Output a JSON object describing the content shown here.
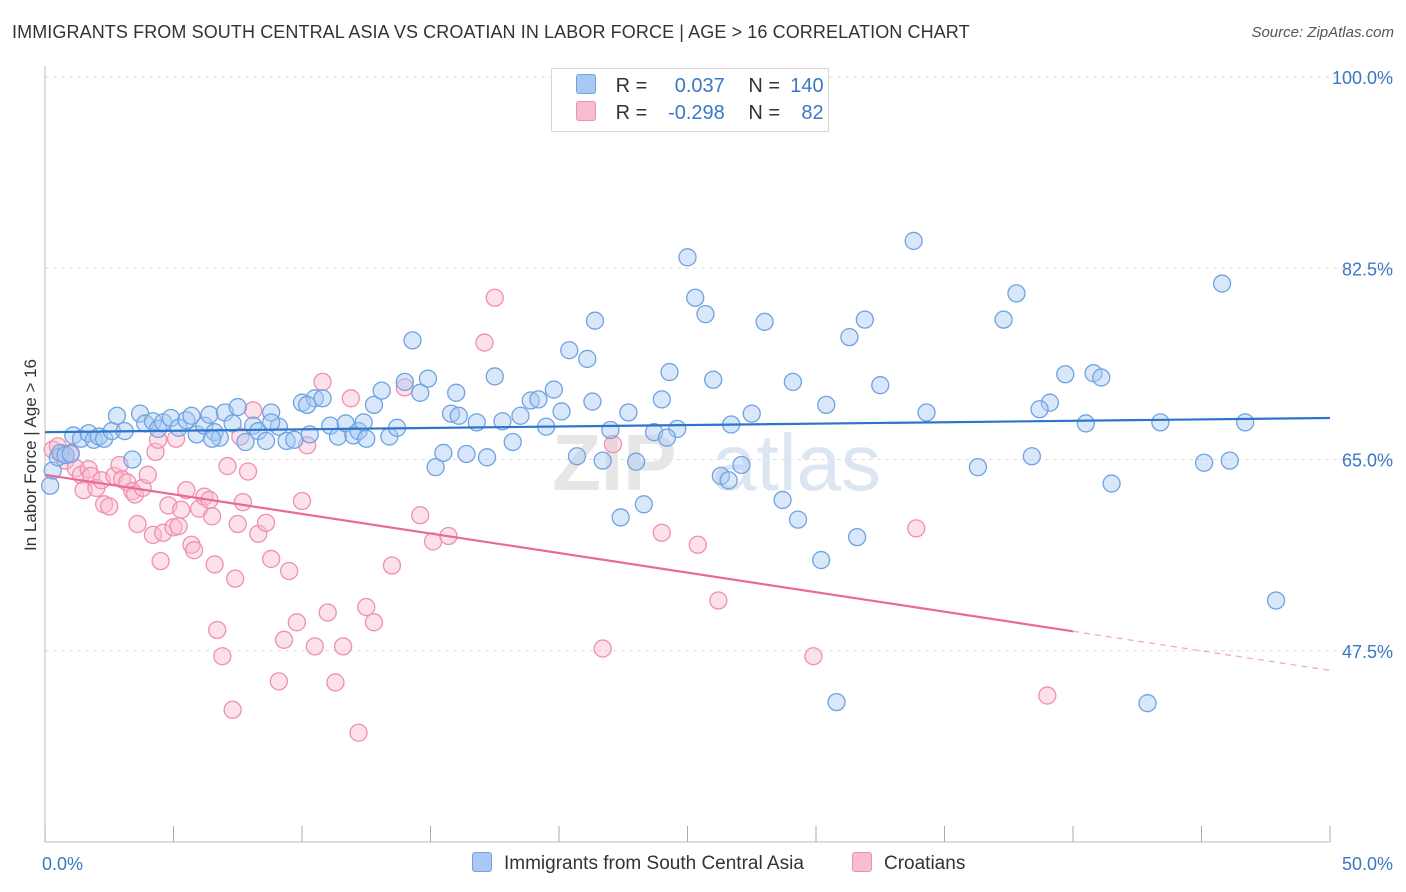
{
  "header": {
    "title": "IMMIGRANTS FROM SOUTH CENTRAL ASIA VS CROATIAN IN LABOR FORCE | AGE > 16 CORRELATION CHART",
    "source": "Source: ZipAtlas.com"
  },
  "legend": {
    "rows": [
      {
        "r_label": "R =",
        "r_value": "0.037",
        "n_label": "N =",
        "n_value": "140"
      },
      {
        "r_label": "R =",
        "r_value": "-0.298",
        "n_label": "N =",
        "n_value": "82"
      }
    ],
    "bottom": [
      "Immigrants from South Central Asia",
      "Croatians"
    ]
  },
  "watermark": {
    "zip": "ZIP",
    "atlas": "atlas"
  },
  "colors": {
    "blue_fill": "#a9c9f3",
    "blue_stroke": "#6fa3e0",
    "blue_line": "#2d74cc",
    "pink_fill": "#f8bdd0",
    "pink_stroke": "#f08fae",
    "pink_line": "#e8699a",
    "tick_text": "#3b78c4",
    "grid": "#dddddd"
  },
  "chart_data": {
    "type": "scatter",
    "title": "IMMIGRANTS FROM SOUTH CENTRAL ASIA VS CROATIAN IN LABOR FORCE | AGE > 16 CORRELATION CHART",
    "xlabel": "",
    "ylabel": "In Labor Force | Age > 16",
    "xlim": [
      0,
      50
    ],
    "ylim": [
      30,
      100
    ],
    "x_tick_labels": [
      {
        "value": 0,
        "label": "0.0%"
      },
      {
        "value": 50,
        "label": "50.0%"
      }
    ],
    "y_tick_labels": [
      {
        "value": 100,
        "label": "100.0%"
      },
      {
        "value": 82.5,
        "label": "82.5%"
      },
      {
        "value": 65,
        "label": "65.0%"
      },
      {
        "value": 47.5,
        "label": "47.5%"
      }
    ],
    "grid": "horizontal dashed",
    "series": [
      {
        "name": "Immigrants from South Central Asia",
        "color": "#6fa3e0",
        "stats": {
          "R": 0.037,
          "N": 140
        },
        "trend": {
          "x": [
            0,
            50
          ],
          "y": [
            67.5,
            68.8
          ],
          "dashed_from": null
        },
        "points": [
          [
            0.2,
            62.6
          ],
          [
            0.3,
            64.0
          ],
          [
            0.5,
            65.2
          ],
          [
            0.6,
            65.6
          ],
          [
            0.8,
            65.4
          ],
          [
            1.0,
            65.5
          ],
          [
            1.1,
            67.2
          ],
          [
            1.4,
            66.9
          ],
          [
            1.7,
            67.4
          ],
          [
            1.9,
            66.8
          ],
          [
            2.1,
            67.1
          ],
          [
            2.3,
            66.9
          ],
          [
            2.6,
            67.6
          ],
          [
            2.8,
            69.0
          ],
          [
            3.1,
            67.6
          ],
          [
            3.4,
            65.0
          ],
          [
            3.7,
            69.2
          ],
          [
            3.9,
            68.3
          ],
          [
            4.2,
            68.5
          ],
          [
            4.4,
            67.8
          ],
          [
            4.6,
            68.4
          ],
          [
            4.9,
            68.8
          ],
          [
            5.2,
            67.9
          ],
          [
            5.5,
            68.6
          ],
          [
            5.7,
            69.0
          ],
          [
            5.9,
            67.3
          ],
          [
            6.2,
            68.1
          ],
          [
            6.4,
            69.1
          ],
          [
            6.6,
            67.5
          ],
          [
            6.8,
            67.0
          ],
          [
            7.0,
            69.3
          ],
          [
            7.3,
            68.3
          ],
          [
            7.5,
            69.8
          ],
          [
            7.8,
            66.6
          ],
          [
            8.1,
            68.1
          ],
          [
            8.3,
            67.6
          ],
          [
            8.6,
            66.7
          ],
          [
            8.8,
            69.3
          ],
          [
            9.1,
            68.0
          ],
          [
            9.4,
            66.7
          ],
          [
            9.7,
            66.8
          ],
          [
            10.0,
            70.2
          ],
          [
            10.3,
            67.3
          ],
          [
            10.5,
            70.6
          ],
          [
            10.8,
            70.6
          ],
          [
            11.1,
            68.1
          ],
          [
            11.4,
            67.1
          ],
          [
            11.7,
            68.3
          ],
          [
            12.0,
            67.2
          ],
          [
            12.2,
            67.6
          ],
          [
            12.5,
            66.9
          ],
          [
            12.8,
            70.0
          ],
          [
            13.1,
            71.3
          ],
          [
            13.4,
            67.1
          ],
          [
            13.7,
            67.9
          ],
          [
            14.0,
            72.1
          ],
          [
            14.3,
            75.9
          ],
          [
            14.6,
            71.1
          ],
          [
            14.9,
            72.4
          ],
          [
            15.2,
            64.3
          ],
          [
            15.5,
            65.6
          ],
          [
            15.8,
            69.2
          ],
          [
            16.1,
            69.0
          ],
          [
            16.4,
            65.5
          ],
          [
            16.8,
            68.4
          ],
          [
            17.2,
            65.2
          ],
          [
            17.5,
            72.6
          ],
          [
            17.8,
            68.5
          ],
          [
            18.2,
            66.6
          ],
          [
            18.5,
            69.0
          ],
          [
            18.9,
            70.4
          ],
          [
            19.2,
            70.5
          ],
          [
            19.5,
            68.0
          ],
          [
            19.8,
            71.4
          ],
          [
            20.1,
            69.4
          ],
          [
            20.4,
            75.0
          ],
          [
            20.7,
            65.3
          ],
          [
            21.1,
            74.2
          ],
          [
            21.4,
            77.7
          ],
          [
            21.7,
            64.9
          ],
          [
            22.0,
            67.7
          ],
          [
            22.4,
            59.7
          ],
          [
            22.7,
            69.3
          ],
          [
            23.0,
            64.8
          ],
          [
            23.3,
            60.9
          ],
          [
            23.7,
            67.5
          ],
          [
            24.0,
            70.5
          ],
          [
            24.3,
            73.0
          ],
          [
            24.6,
            67.8
          ],
          [
            25.0,
            83.5
          ],
          [
            25.3,
            79.8
          ],
          [
            25.7,
            78.3
          ],
          [
            26.0,
            72.3
          ],
          [
            26.3,
            63.5
          ],
          [
            26.6,
            63.1
          ],
          [
            27.1,
            64.5
          ],
          [
            27.5,
            69.2
          ],
          [
            28.0,
            77.6
          ],
          [
            28.7,
            61.3
          ],
          [
            29.1,
            72.1
          ],
          [
            29.3,
            59.5
          ],
          [
            30.2,
            55.8
          ],
          [
            30.8,
            42.8
          ],
          [
            31.3,
            76.2
          ],
          [
            31.6,
            57.9
          ],
          [
            31.9,
            77.8
          ],
          [
            32.5,
            71.8
          ],
          [
            33.8,
            85.0
          ],
          [
            34.3,
            69.3
          ],
          [
            36.3,
            64.3
          ],
          [
            37.3,
            77.8
          ],
          [
            37.8,
            80.2
          ],
          [
            38.4,
            65.3
          ],
          [
            39.1,
            70.2
          ],
          [
            39.7,
            72.8
          ],
          [
            40.5,
            68.3
          ],
          [
            40.8,
            72.9
          ],
          [
            41.1,
            72.5
          ],
          [
            41.5,
            62.8
          ],
          [
            42.9,
            42.7
          ],
          [
            43.4,
            68.4
          ],
          [
            45.1,
            64.7
          ],
          [
            45.8,
            81.1
          ],
          [
            46.1,
            64.9
          ],
          [
            46.7,
            68.4
          ],
          [
            47.9,
            52.1
          ],
          [
            6.5,
            66.9
          ],
          [
            8.8,
            68.4
          ],
          [
            10.2,
            70.0
          ],
          [
            12.4,
            68.4
          ],
          [
            16.0,
            71.1
          ],
          [
            21.3,
            70.3
          ],
          [
            24.2,
            67.0
          ],
          [
            26.7,
            68.2
          ],
          [
            30.4,
            70.0
          ],
          [
            38.7,
            69.6
          ]
        ]
      },
      {
        "name": "Croatians",
        "color": "#f08fae",
        "stats": {
          "R": -0.298,
          "N": 82
        },
        "trend": {
          "x": [
            0,
            50
          ],
          "y": [
            63.6,
            45.7
          ],
          "dashed_from": 40
        },
        "points": [
          [
            0.3,
            65.9
          ],
          [
            0.5,
            66.2
          ],
          [
            0.7,
            65.5
          ],
          [
            0.8,
            64.9
          ],
          [
            1.0,
            65.6
          ],
          [
            1.2,
            64.2
          ],
          [
            1.4,
            63.6
          ],
          [
            1.5,
            62.2
          ],
          [
            1.7,
            64.1
          ],
          [
            1.8,
            63.5
          ],
          [
            2.0,
            62.4
          ],
          [
            2.2,
            63.1
          ],
          [
            2.3,
            60.9
          ],
          [
            2.5,
            60.7
          ],
          [
            2.7,
            63.5
          ],
          [
            2.9,
            64.5
          ],
          [
            3.0,
            63.2
          ],
          [
            3.2,
            62.9
          ],
          [
            3.4,
            62.1
          ],
          [
            3.5,
            61.8
          ],
          [
            3.6,
            59.1
          ],
          [
            3.8,
            62.4
          ],
          [
            4.0,
            63.6
          ],
          [
            4.2,
            58.1
          ],
          [
            4.3,
            65.7
          ],
          [
            4.4,
            66.8
          ],
          [
            4.5,
            55.7
          ],
          [
            4.6,
            58.3
          ],
          [
            4.8,
            60.8
          ],
          [
            5.0,
            58.8
          ],
          [
            5.1,
            66.9
          ],
          [
            5.2,
            58.9
          ],
          [
            5.3,
            60.4
          ],
          [
            5.5,
            62.2
          ],
          [
            5.7,
            57.2
          ],
          [
            5.8,
            56.7
          ],
          [
            6.0,
            60.5
          ],
          [
            6.2,
            61.6
          ],
          [
            6.4,
            61.3
          ],
          [
            6.5,
            59.8
          ],
          [
            6.6,
            55.4
          ],
          [
            6.7,
            49.4
          ],
          [
            6.9,
            47.0
          ],
          [
            7.1,
            64.4
          ],
          [
            7.3,
            42.1
          ],
          [
            7.4,
            54.1
          ],
          [
            7.5,
            59.1
          ],
          [
            7.6,
            67.1
          ],
          [
            7.7,
            61.1
          ],
          [
            7.9,
            63.9
          ],
          [
            8.1,
            69.5
          ],
          [
            8.3,
            58.2
          ],
          [
            8.6,
            59.2
          ],
          [
            8.8,
            55.9
          ],
          [
            9.1,
            44.7
          ],
          [
            9.3,
            48.5
          ],
          [
            9.5,
            54.8
          ],
          [
            9.8,
            50.1
          ],
          [
            10.0,
            61.2
          ],
          [
            10.2,
            66.3
          ],
          [
            10.5,
            47.9
          ],
          [
            10.8,
            72.1
          ],
          [
            11.0,
            51.0
          ],
          [
            11.3,
            44.6
          ],
          [
            11.6,
            47.9
          ],
          [
            11.9,
            70.6
          ],
          [
            12.2,
            40.0
          ],
          [
            12.5,
            51.5
          ],
          [
            12.8,
            50.1
          ],
          [
            13.5,
            55.3
          ],
          [
            14.0,
            71.6
          ],
          [
            14.6,
            59.9
          ],
          [
            15.1,
            57.5
          ],
          [
            15.7,
            58.0
          ],
          [
            17.1,
            75.7
          ],
          [
            17.5,
            79.8
          ],
          [
            21.7,
            47.7
          ],
          [
            22.1,
            66.4
          ],
          [
            24.0,
            58.3
          ],
          [
            25.4,
            57.2
          ],
          [
            26.2,
            52.1
          ],
          [
            29.9,
            47.0
          ],
          [
            33.9,
            58.7
          ],
          [
            39.0,
            43.4
          ]
        ]
      }
    ]
  }
}
